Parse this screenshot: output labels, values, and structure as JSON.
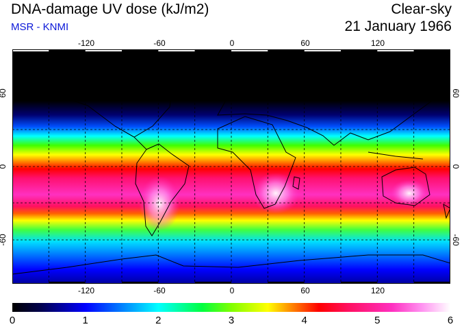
{
  "header": {
    "title": "DNA-damage UV dose (kJ/m2)",
    "subtitle": "MSR - KNMI",
    "condition": "Clear-sky",
    "date": "21 January 1966"
  },
  "colors": {
    "subtitle": "#0a17d8"
  },
  "map": {
    "lon_ticks": [
      "-120",
      "-60",
      "0",
      "60",
      "120"
    ],
    "lat_ticks_left": [
      "60",
      "0",
      "-60"
    ],
    "lat_ticks_right": [
      "60",
      "0",
      "-60"
    ]
  },
  "legend": {
    "min": 0,
    "max": 6,
    "labels": [
      "0",
      "1",
      "2",
      "3",
      "4",
      "5",
      "6"
    ],
    "stops": [
      {
        "value": 0.0,
        "color": "#000000"
      },
      {
        "value": 0.4,
        "color": "#000050"
      },
      {
        "value": 1.0,
        "color": "#0000ff"
      },
      {
        "value": 1.5,
        "color": "#0080ff"
      },
      {
        "value": 2.0,
        "color": "#00ffff"
      },
      {
        "value": 2.6,
        "color": "#00ff40"
      },
      {
        "value": 3.0,
        "color": "#80ff00"
      },
      {
        "value": 3.5,
        "color": "#ffff00"
      },
      {
        "value": 3.8,
        "color": "#ff9000"
      },
      {
        "value": 4.2,
        "color": "#ff0000"
      },
      {
        "value": 4.6,
        "color": "#ff1060"
      },
      {
        "value": 5.2,
        "color": "#ff30c0"
      },
      {
        "value": 5.6,
        "color": "#ff90f0"
      },
      {
        "value": 6.0,
        "color": "#ffffff"
      }
    ]
  }
}
